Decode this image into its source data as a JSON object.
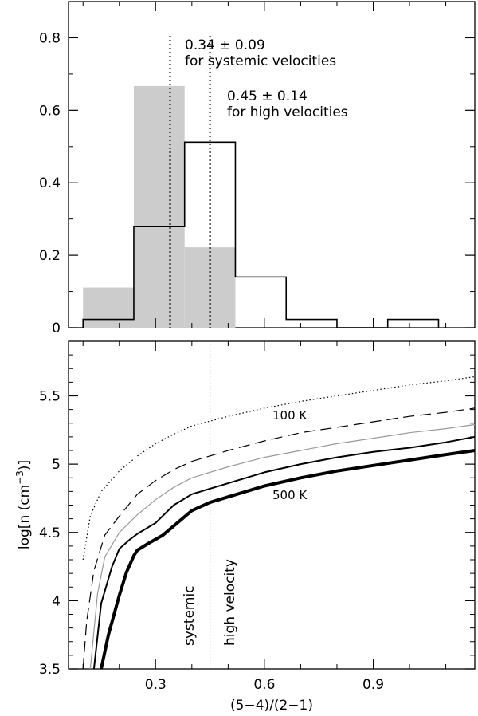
{
  "chart_data": [
    {
      "type": "bar",
      "title": "",
      "xlabel": "",
      "ylabel": "",
      "xlim": [
        0.06,
        1.18
      ],
      "ylim": [
        0,
        0.9
      ],
      "yticks": [
        "0",
        "0.2",
        "0.4",
        "0.6",
        "0.8"
      ],
      "bin_edges": [
        0.1,
        0.24,
        0.38,
        0.52,
        0.66,
        0.8,
        0.94,
        1.08
      ],
      "series": [
        {
          "style": "filled-gray",
          "values": [
            0.111,
            0.667,
            0.222,
            0,
            0,
            0,
            0
          ]
        },
        {
          "style": "step-outline",
          "values": [
            0.023,
            0.279,
            0.512,
            0.14,
            0.023,
            0,
            0.023
          ]
        }
      ],
      "vertical_lines": [
        {
          "x": 0.34,
          "label": "0.34 ± 0.09",
          "sublabel": "for systemic velocities"
        },
        {
          "x": 0.45,
          "label": "0.45 ± 0.14",
          "sublabel": "for high velocities"
        }
      ]
    },
    {
      "type": "line",
      "title": "",
      "xlabel": "(5−4)/(2−1)",
      "ylabel_main": "log[n (cm",
      "ylabel_sup": "−3",
      "ylabel_end": ")]",
      "xlim": [
        0.06,
        1.18
      ],
      "ylim": [
        3.5,
        5.9
      ],
      "xticks": [
        "0.3",
        "0.6",
        "0.9"
      ],
      "yticks": [
        "3.5",
        "4",
        "4.5",
        "5",
        "5.5"
      ],
      "series": [
        {
          "label": "100 K",
          "style": "dotted",
          "x": [
            0.1,
            0.12,
            0.15,
            0.2,
            0.25,
            0.3,
            0.35,
            0.4,
            0.5,
            0.6,
            0.7,
            0.8,
            0.9,
            1.0,
            1.1,
            1.18
          ],
          "y": [
            4.3,
            4.62,
            4.8,
            4.95,
            5.06,
            5.15,
            5.22,
            5.28,
            5.35,
            5.41,
            5.46,
            5.5,
            5.54,
            5.58,
            5.61,
            5.64
          ]
        },
        {
          "label": "",
          "style": "dashed",
          "x": [
            0.1,
            0.11,
            0.13,
            0.16,
            0.2,
            0.25,
            0.3,
            0.35,
            0.4,
            0.5,
            0.6,
            0.7,
            0.8,
            0.9,
            1.0,
            1.1,
            1.18
          ],
          "y": [
            3.5,
            3.85,
            4.22,
            4.48,
            4.62,
            4.78,
            4.88,
            4.96,
            5.02,
            5.1,
            5.17,
            5.23,
            5.27,
            5.31,
            5.35,
            5.38,
            5.41
          ]
        },
        {
          "label": "",
          "style": "thin-gray",
          "x": [
            0.12,
            0.14,
            0.16,
            0.2,
            0.25,
            0.3,
            0.35,
            0.4,
            0.5,
            0.6,
            0.7,
            0.8,
            0.9,
            1.0,
            1.1,
            1.18
          ],
          "y": [
            3.5,
            4.05,
            4.32,
            4.5,
            4.63,
            4.74,
            4.83,
            4.9,
            4.98,
            5.05,
            5.1,
            5.15,
            5.19,
            5.23,
            5.26,
            5.29
          ]
        },
        {
          "label": "",
          "style": "medium-black",
          "x": [
            0.13,
            0.15,
            0.18,
            0.2,
            0.23,
            0.25,
            0.3,
            0.35,
            0.4,
            0.5,
            0.6,
            0.7,
            0.8,
            0.9,
            1.0,
            1.1,
            1.18
          ],
          "y": [
            3.5,
            3.98,
            4.25,
            4.38,
            4.45,
            4.49,
            4.57,
            4.7,
            4.78,
            4.86,
            4.94,
            5.0,
            5.05,
            5.09,
            5.12,
            5.16,
            5.2
          ]
        },
        {
          "label": "500 K",
          "style": "thick-black",
          "x": [
            0.15,
            0.17,
            0.2,
            0.22,
            0.24,
            0.25,
            0.28,
            0.32,
            0.36,
            0.4,
            0.45,
            0.5,
            0.6,
            0.7,
            0.8,
            0.9,
            1.0,
            1.1,
            1.18
          ],
          "y": [
            3.5,
            3.75,
            4.04,
            4.21,
            4.33,
            4.37,
            4.42,
            4.48,
            4.57,
            4.66,
            4.72,
            4.76,
            4.84,
            4.9,
            4.95,
            4.99,
            5.03,
            5.07,
            5.1
          ]
        }
      ],
      "vertical_lines": [
        {
          "x": 0.34,
          "label": "systemic"
        },
        {
          "x": 0.45,
          "label": "high velocity"
        }
      ]
    }
  ]
}
